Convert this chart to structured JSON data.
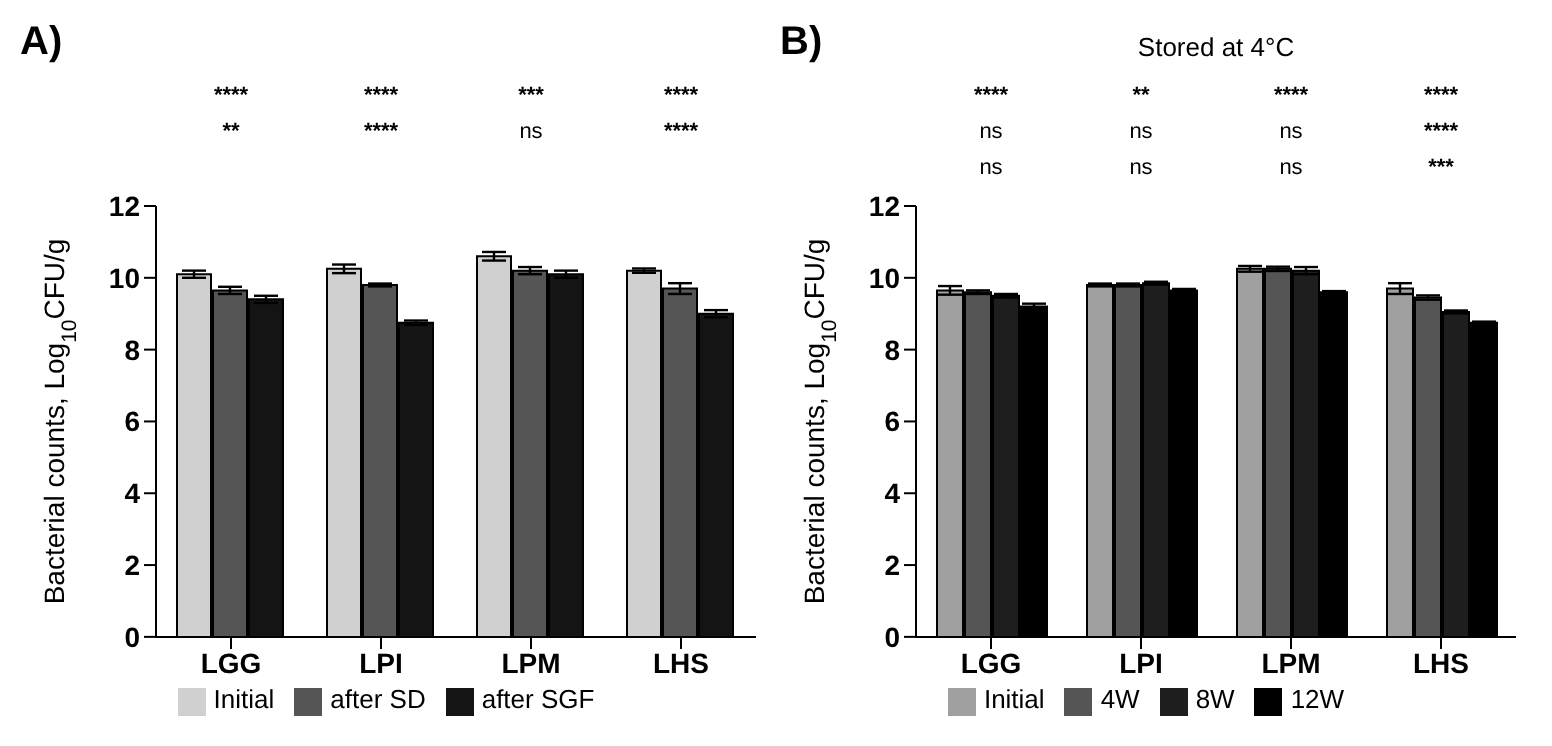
{
  "chart_data": [
    {
      "type": "bar",
      "title": "A)",
      "ylabel": "Bacterial counts, Log$_{10}$CFU/g",
      "categories": [
        "LGG",
        "LPI",
        "LPM",
        "LHS"
      ],
      "series": [
        {
          "name": "Initial",
          "color": "#d0d0d0",
          "values": [
            10.1,
            10.25,
            10.6,
            10.2
          ],
          "errors": [
            0.1,
            0.12,
            0.12,
            0.06
          ]
        },
        {
          "name": "after SD",
          "color": "#555555",
          "values": [
            9.65,
            9.8,
            10.2,
            9.7
          ],
          "errors": [
            0.1,
            0.04,
            0.1,
            0.15
          ]
        },
        {
          "name": "after SGF",
          "color": "#141414",
          "values": [
            9.4,
            8.75,
            10.1,
            9.0
          ],
          "errors": [
            0.1,
            0.06,
            0.1,
            0.1
          ]
        }
      ],
      "ylim": [
        0,
        12
      ],
      "yticks": [
        0,
        2,
        4,
        6,
        8,
        10,
        12
      ],
      "grid": false,
      "legend": "bottom",
      "annotations": [
        "****",
        "**",
        "****",
        "****",
        "***",
        "ns",
        "****",
        "****"
      ]
    },
    {
      "type": "bar",
      "title": "B)",
      "subtitle": "Stored at 4°C",
      "ylabel": "Bacterial counts, Log$_{10}$CFU/g",
      "categories": [
        "LGG",
        "LPI",
        "LPM",
        "LHS"
      ],
      "series": [
        {
          "name": "Initial",
          "color": "#a0a0a0",
          "values": [
            9.65,
            9.8,
            10.25,
            9.7
          ],
          "errors": [
            0.12,
            0.04,
            0.08,
            0.15
          ]
        },
        {
          "name": "4W",
          "color": "#555555",
          "values": [
            9.6,
            9.8,
            10.25,
            9.45
          ],
          "errors": [
            0.05,
            0.04,
            0.06,
            0.06
          ]
        },
        {
          "name": "8W",
          "color": "#1e1e1e",
          "values": [
            9.5,
            9.85,
            10.2,
            9.05
          ],
          "errors": [
            0.05,
            0.04,
            0.1,
            0.04
          ]
        },
        {
          "name": "12W",
          "color": "#000000",
          "values": [
            9.2,
            9.65,
            9.6,
            8.75
          ],
          "errors": [
            0.08,
            0.04,
            0.03,
            0.03
          ]
        }
      ],
      "ylim": [
        0,
        12
      ],
      "yticks": [
        0,
        2,
        4,
        6,
        8,
        10,
        12
      ],
      "grid": false,
      "legend": "bottom",
      "annotations": [
        "****",
        "ns",
        "ns",
        "**",
        "ns",
        "ns",
        "****",
        "ns",
        "ns",
        "****",
        "****",
        "***"
      ]
    }
  ]
}
